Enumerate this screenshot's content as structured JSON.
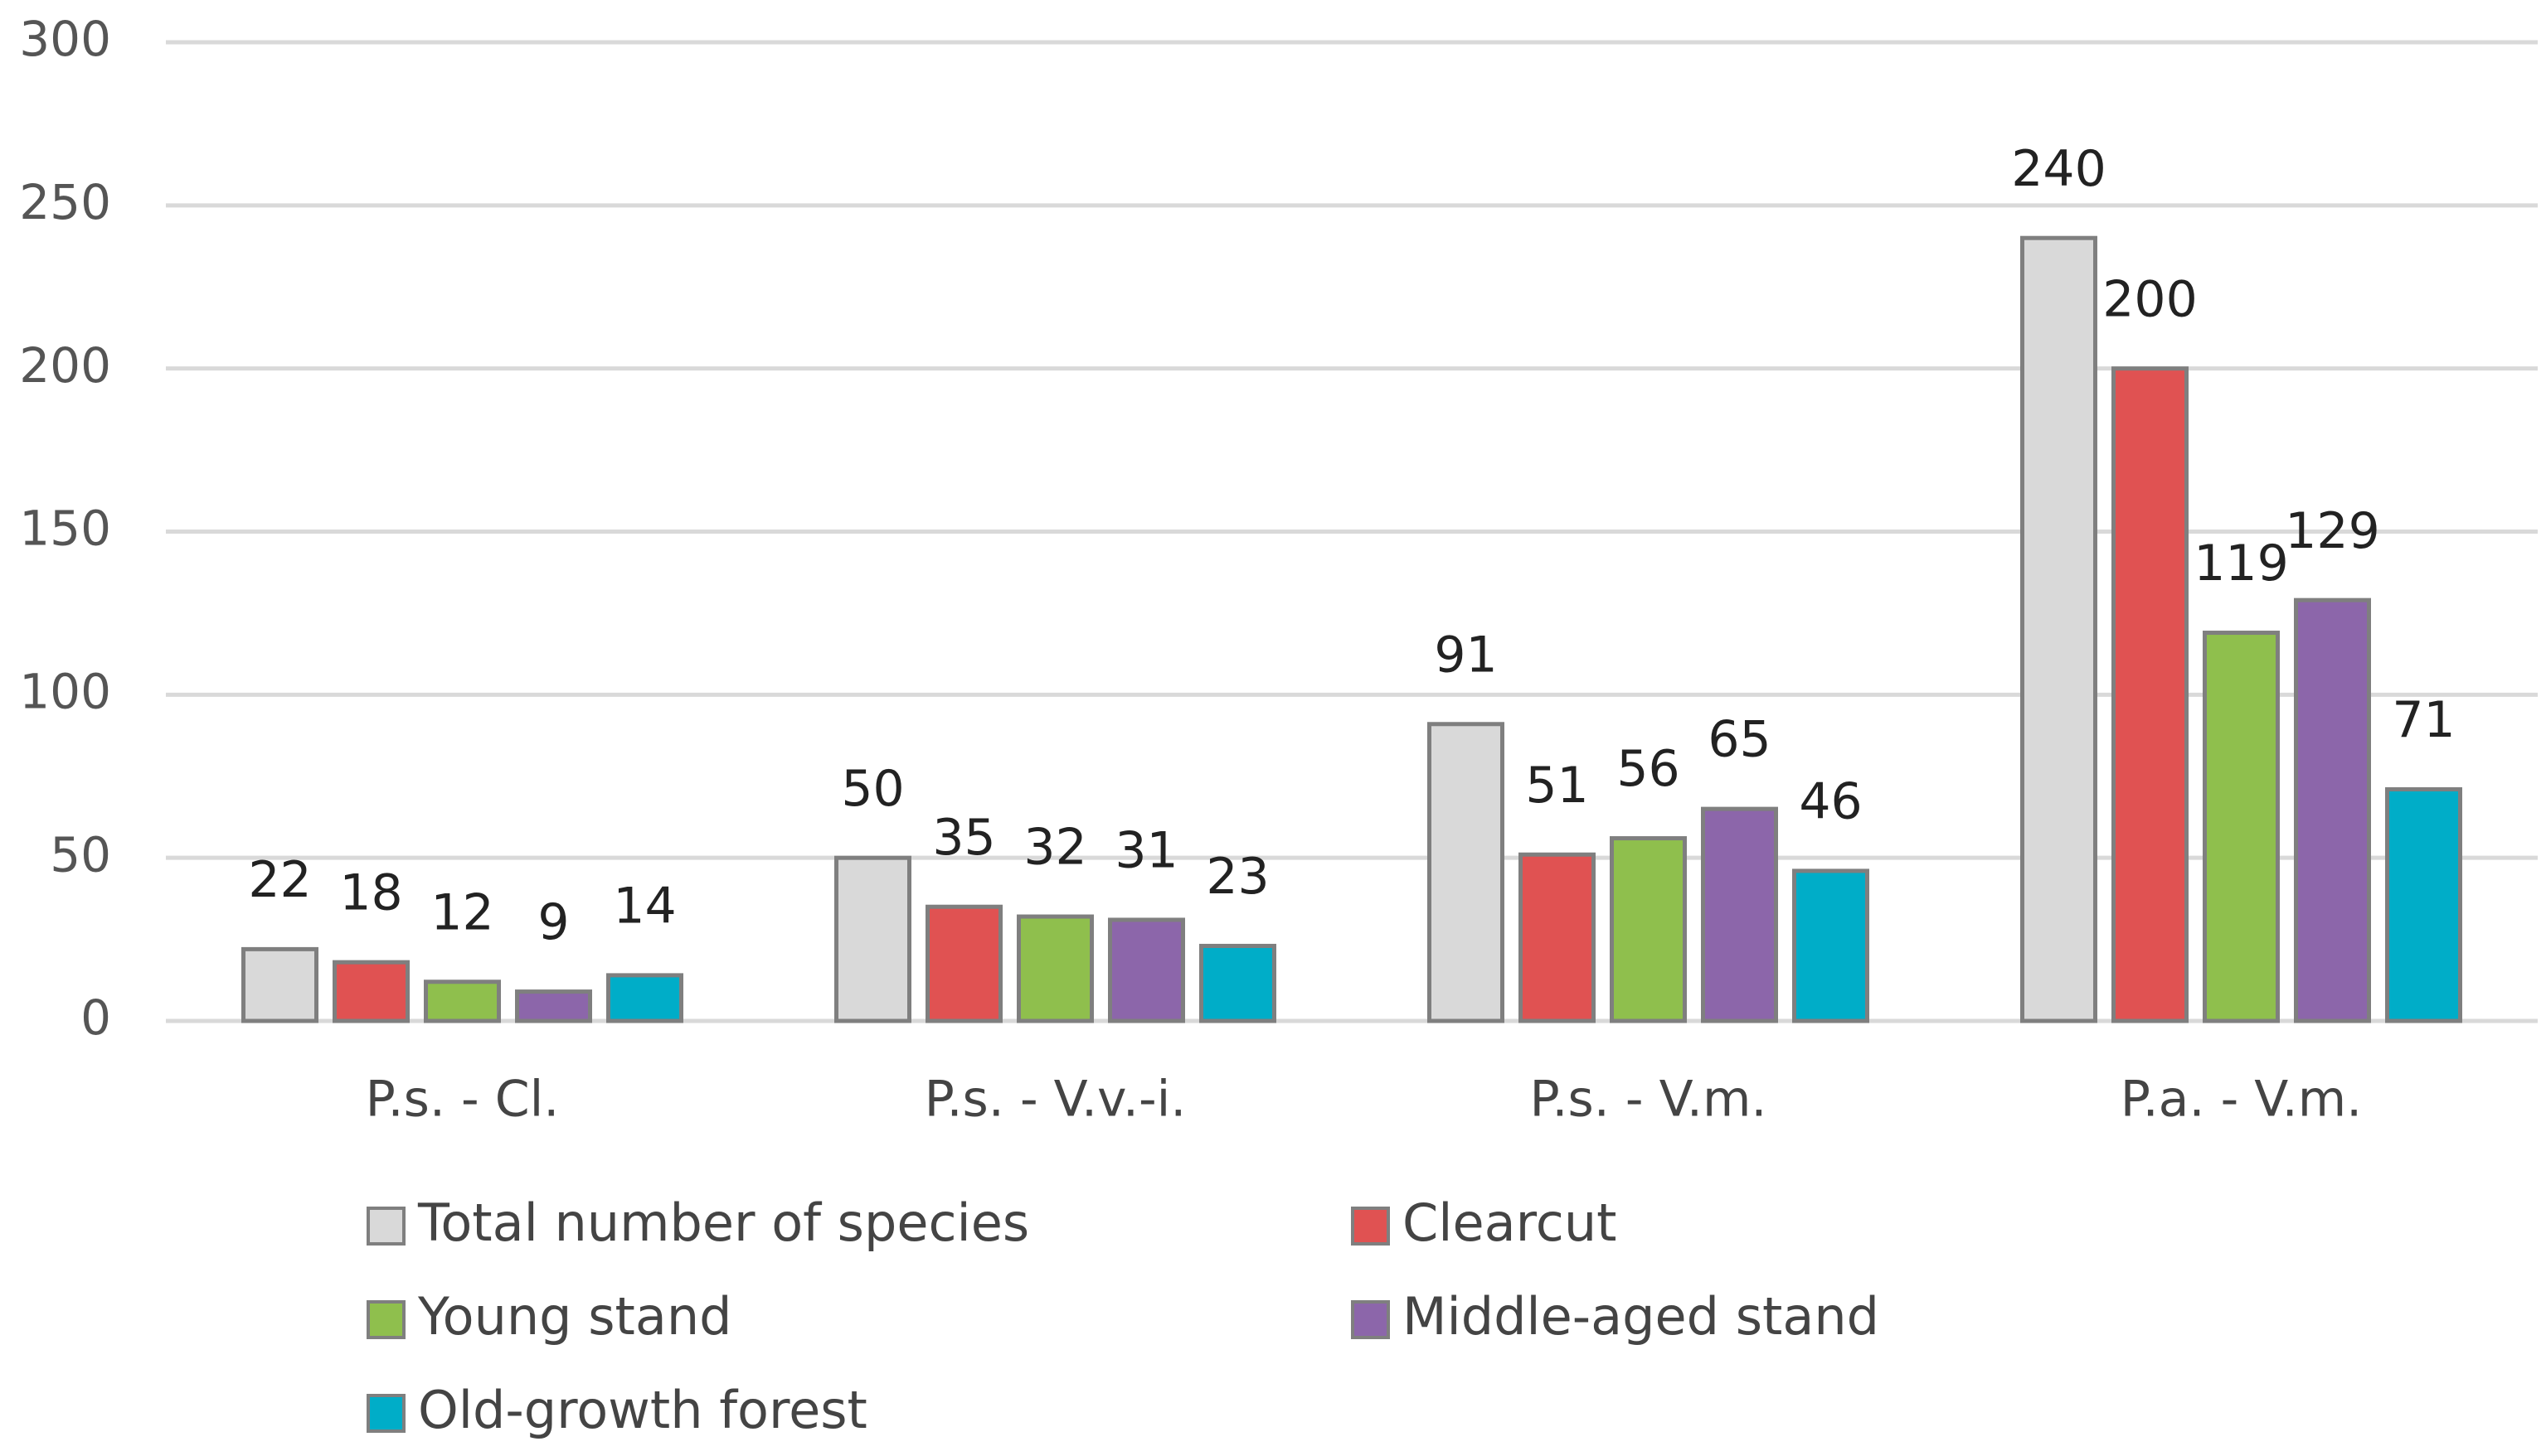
{
  "chart_data": {
    "type": "bar",
    "categories": [
      "P.s. - Cl.",
      "P.s. - V.v.-i.",
      "P.s. - V.m.",
      "P.a. - V.m."
    ],
    "series": [
      {
        "name": "Total number of species",
        "color": "#d9d9d9",
        "values": [
          22,
          50,
          91,
          240
        ]
      },
      {
        "name": "Clearcut",
        "color": "#e05252",
        "values": [
          18,
          35,
          51,
          200
        ]
      },
      {
        "name": "Young stand",
        "color": "#8fbf4d",
        "values": [
          12,
          32,
          56,
          119
        ]
      },
      {
        "name": "Middle-aged stand",
        "color": "#8c66aa",
        "values": [
          9,
          31,
          65,
          129
        ]
      },
      {
        "name": "Old-growth forest",
        "color": "#00adc8",
        "values": [
          14,
          23,
          46,
          71
        ]
      }
    ],
    "ylim": [
      0,
      300
    ],
    "yticks": [
      0,
      50,
      100,
      150,
      200,
      250,
      300
    ],
    "grid": true,
    "legend": "bottom"
  }
}
